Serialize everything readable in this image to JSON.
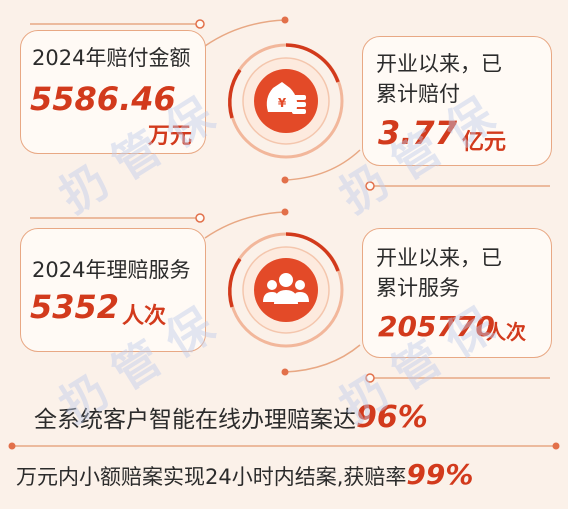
{
  "colors": {
    "accent": "#d23a1c",
    "card_border": "#e8a884",
    "background": "#fbf1e9"
  },
  "block1": {
    "left_label": "2024年赔付金额",
    "left_value": "5586.46",
    "left_unit": "万元",
    "icon": "money-bag-coins-icon",
    "right_label_line1": "开业以来，已",
    "right_label_line2": "累计赔付",
    "right_value": "3.77",
    "right_unit": "亿元"
  },
  "block2": {
    "left_label": "2024年理赔服务",
    "left_value": "5352",
    "left_unit": "人次",
    "icon": "people-group-icon",
    "right_label_line1": "开业以来，已",
    "right_label_line2": "累计服务",
    "right_value": "205770",
    "right_unit": "人次"
  },
  "footer": {
    "line1_text": "全系统客户智能在线办理赔案达",
    "line1_value": "96%",
    "line2_text": "万元内小额赔案实现24小时内结案,获赔率",
    "line2_value": "99%"
  },
  "watermark": "扔 管 保"
}
